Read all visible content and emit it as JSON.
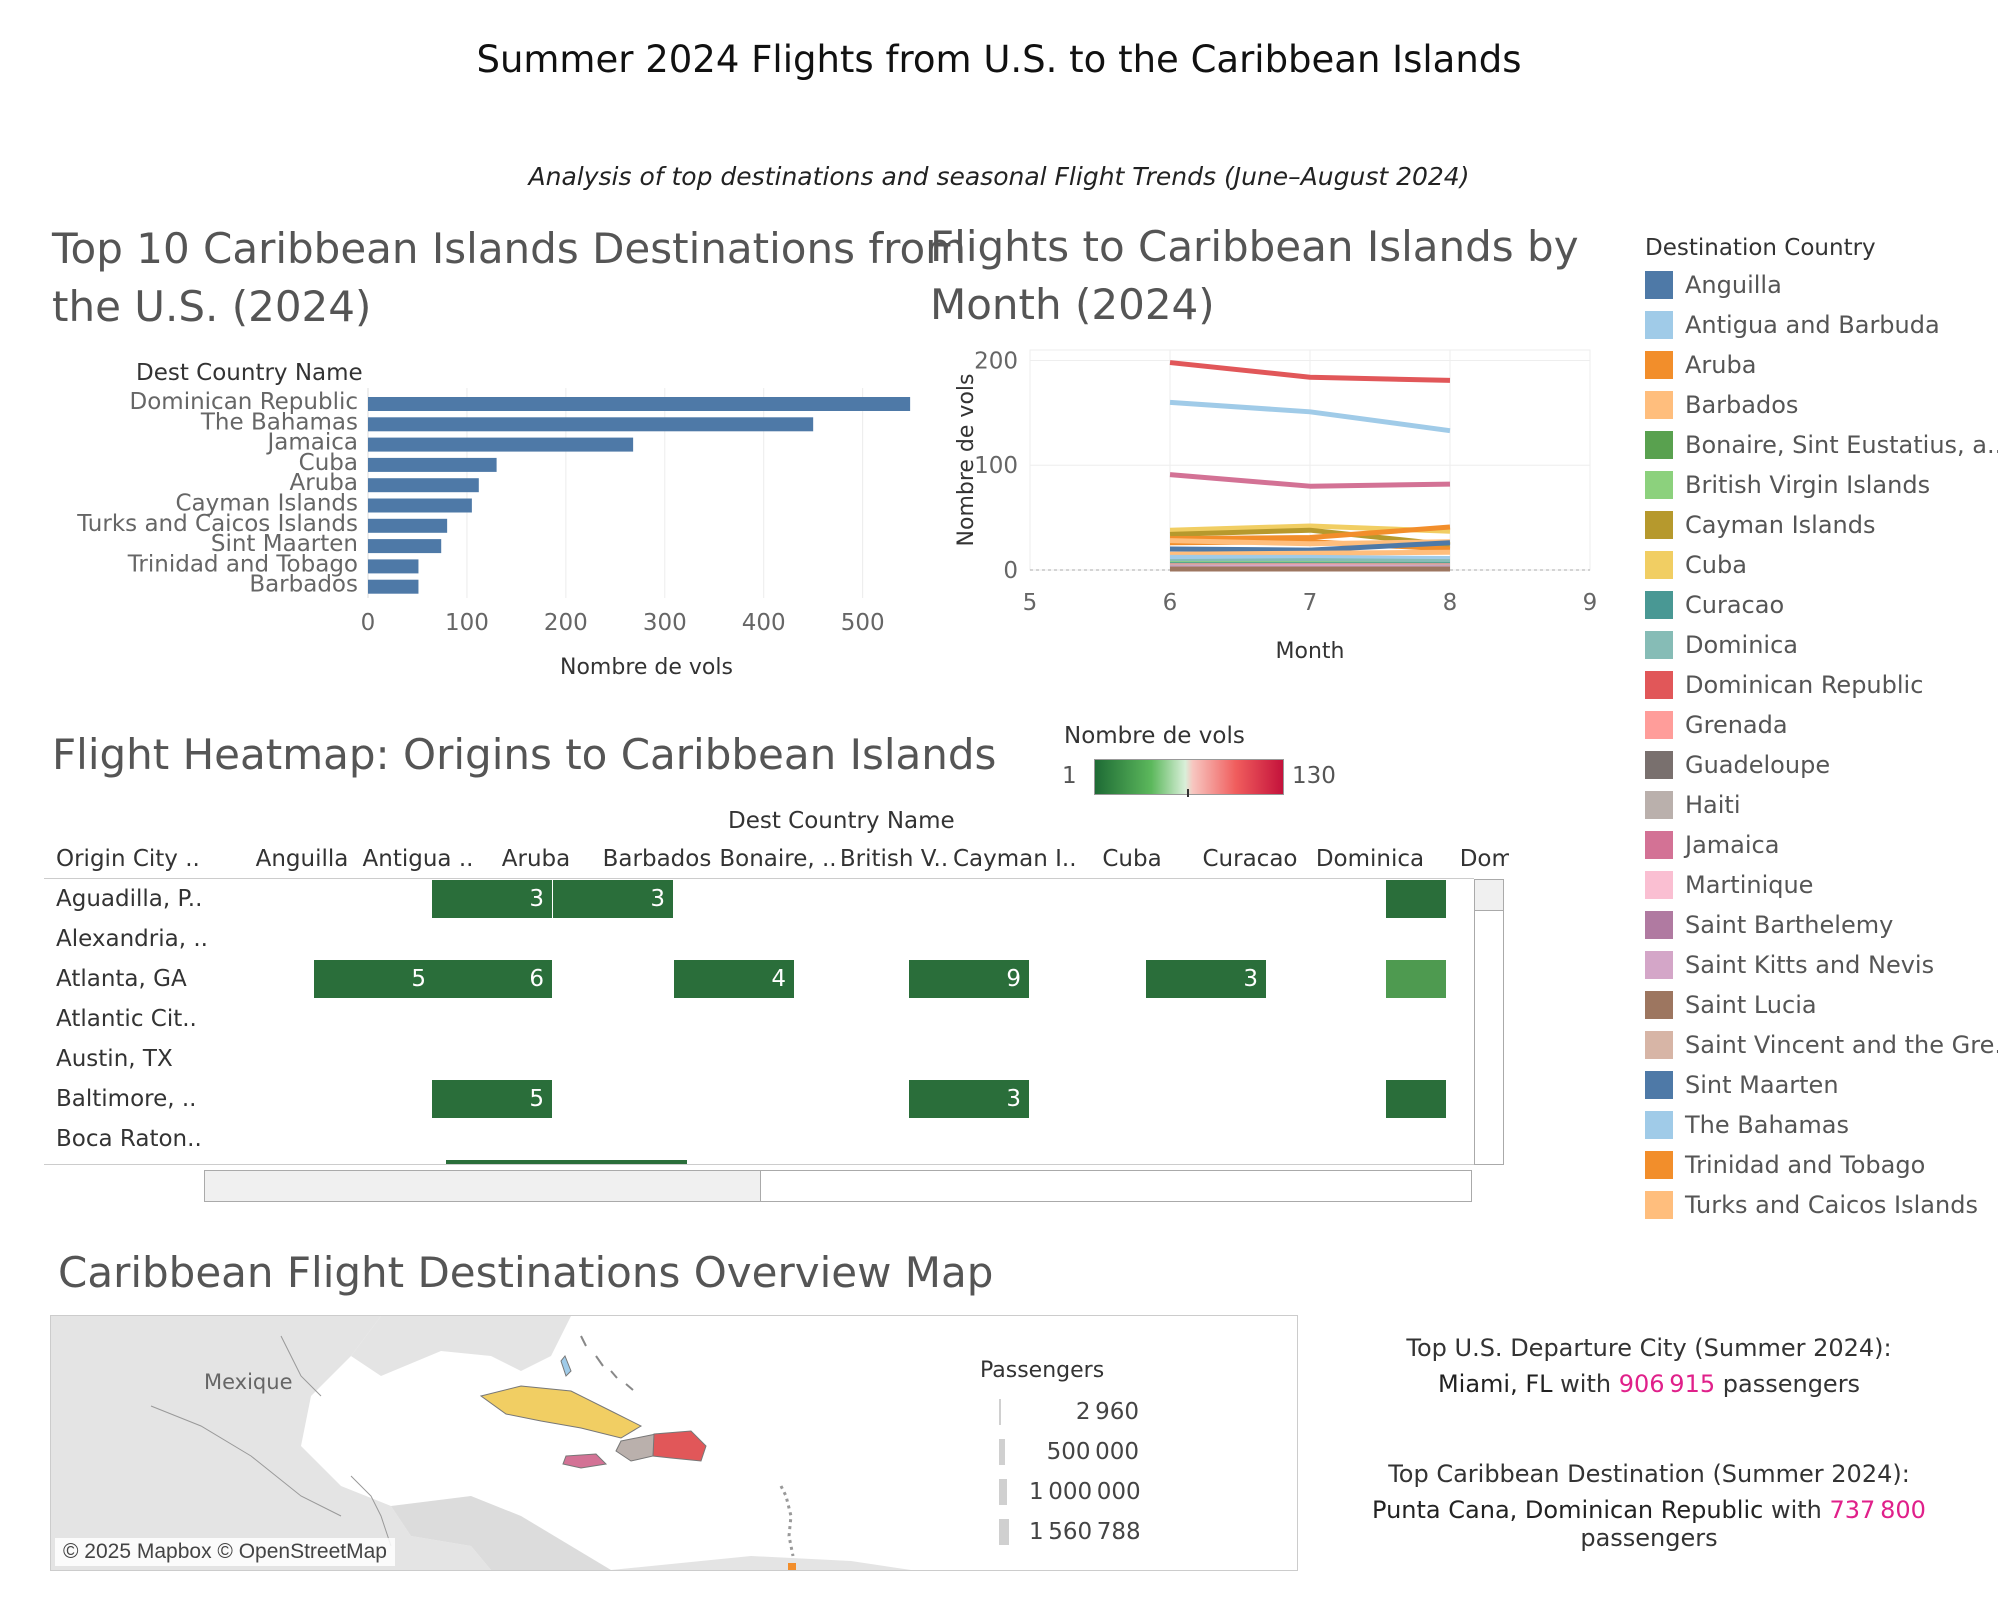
{
  "header": {
    "title": "Summer 2024 Flights from U.S. to the Caribbean Islands",
    "subtitle": "Analysis of top destinations and seasonal Flight Trends (June–August 2024)"
  },
  "bar_chart": {
    "title": "Top 10 Caribbean Islands Destinations from the U.S. (2024)",
    "title_line1": "Top 10 Caribbean Islands Destinations from",
    "title_line2": "the U.S. (2024)",
    "row_header": "Dest Country Name",
    "xlabel": "Nombre de vols",
    "bar_color": "#4e79a7"
  },
  "line_chart": {
    "title": "Flights to Caribbean Islands by Month (2024)",
    "title_line1": "Flights to Caribbean Islands by",
    "title_line2": "Month (2024)",
    "xlabel": "Month",
    "ylabel": "Nombre de vols"
  },
  "legend": {
    "title": "Destination Country",
    "items": [
      {
        "label": "Anguilla",
        "color": "#4e79a7"
      },
      {
        "label": "Antigua and Barbuda",
        "color": "#a0cbe8"
      },
      {
        "label": "Aruba",
        "color": "#f28e2b"
      },
      {
        "label": "Barbados",
        "color": "#ffbe7d"
      },
      {
        "label": "Bonaire, Sint Eustatius, a..",
        "color": "#59a14f"
      },
      {
        "label": "British Virgin Islands",
        "color": "#8cd17d"
      },
      {
        "label": "Cayman Islands",
        "color": "#b6992d"
      },
      {
        "label": "Cuba",
        "color": "#f1ce63"
      },
      {
        "label": "Curacao",
        "color": "#499894"
      },
      {
        "label": "Dominica",
        "color": "#86bcb6"
      },
      {
        "label": "Dominican Republic",
        "color": "#e15759"
      },
      {
        "label": "Grenada",
        "color": "#ff9d9a"
      },
      {
        "label": "Guadeloupe",
        "color": "#79706e"
      },
      {
        "label": "Haiti",
        "color": "#bab0ac"
      },
      {
        "label": "Jamaica",
        "color": "#d37295"
      },
      {
        "label": "Martinique",
        "color": "#fabfd2"
      },
      {
        "label": "Saint Barthelemy",
        "color": "#b07aa1"
      },
      {
        "label": "Saint Kitts and Nevis",
        "color": "#d4a6c8"
      },
      {
        "label": "Saint Lucia",
        "color": "#9d7660"
      },
      {
        "label": "Saint Vincent and the Gre..",
        "color": "#d7b5a6"
      },
      {
        "label": "Sint Maarten",
        "color": "#4e79a7"
      },
      {
        "label": "The Bahamas",
        "color": "#a0cbe8"
      },
      {
        "label": "Trinidad and Tobago",
        "color": "#f28e2b"
      },
      {
        "label": "Turks and Caicos Islands",
        "color": "#ffbe7d"
      }
    ]
  },
  "heatmap": {
    "title": "Flight Heatmap: Origins to Caribbean Islands",
    "column_group": "Dest Country Name",
    "row_header": "Origin City ..",
    "color_legend_title": "Nombre de vols",
    "color_min": "1",
    "color_max": "130",
    "columns": [
      "Anguilla",
      "Antigua ..",
      "Aruba",
      "Barbados",
      "Bonaire, ..",
      "British V..",
      "Cayman I..",
      "Cuba",
      "Curacao",
      "Dominica",
      "Domi"
    ],
    "rows": [
      {
        "label": "Aguadilla, P..",
        "cells": [
          null,
          null,
          "3",
          "3",
          null,
          null,
          null,
          null,
          null,
          null,
          ""
        ]
      },
      {
        "label": "Alexandria, ..",
        "cells": [
          null,
          null,
          null,
          null,
          null,
          null,
          null,
          null,
          null,
          null,
          null
        ]
      },
      {
        "label": "Atlanta, GA",
        "cells": [
          null,
          "5",
          "6",
          null,
          "4",
          null,
          "9",
          null,
          "3",
          null,
          ""
        ]
      },
      {
        "label": "Atlantic Cit..",
        "cells": [
          null,
          null,
          null,
          null,
          null,
          null,
          null,
          null,
          null,
          null,
          null
        ]
      },
      {
        "label": "Austin, TX",
        "cells": [
          null,
          null,
          null,
          null,
          null,
          null,
          null,
          null,
          null,
          null,
          null
        ]
      },
      {
        "label": "Baltimore, ..",
        "cells": [
          null,
          null,
          "5",
          null,
          null,
          null,
          "3",
          null,
          null,
          null,
          ""
        ]
      },
      {
        "label": "Boca Raton..",
        "cells": [
          null,
          null,
          null,
          null,
          null,
          null,
          null,
          null,
          null,
          null,
          null
        ]
      }
    ]
  },
  "map": {
    "title": "Caribbean Flight Destinations Overview Map",
    "country_label": "Mexique",
    "attribution": "© 2025 Mapbox © OpenStreetMap",
    "size_legend_title": "Passengers",
    "size_legend": [
      "2 960",
      "500 000",
      "1 000 000",
      "1 560 788"
    ]
  },
  "kpi": {
    "departure_title": "Top U.S. Departure City (Summer 2024):",
    "departure_city": "Miami, FL",
    "departure_with": "with",
    "departure_value": "906 915",
    "departure_unit": "passengers",
    "destination_title": "Top Caribbean Destination (Summer 2024):",
    "destination_city": "Punta Cana, Dominican Republic",
    "destination_with": "with",
    "destination_value": "737 800",
    "destination_unit": "passengers"
  },
  "chart_data": [
    {
      "type": "bar",
      "orientation": "horizontal",
      "title": "Top 10 Caribbean Islands Destinations from the U.S. (2024)",
      "categories": [
        "Dominican Republic",
        "The Bahamas",
        "Jamaica",
        "Cuba",
        "Aruba",
        "Cayman Islands",
        "Turks and Caicos Islands",
        "Sint Maarten",
        "Trinidad and Tobago",
        "Barbados"
      ],
      "values": [
        548,
        450,
        268,
        130,
        112,
        105,
        80,
        74,
        51,
        51
      ],
      "xlabel": "Nombre de vols",
      "ylabel": "Dest Country Name",
      "xlim": [
        0,
        560
      ],
      "xticks": [
        0,
        100,
        200,
        300,
        400,
        500
      ],
      "grid": true
    },
    {
      "type": "line",
      "title": "Flights to Caribbean Islands by Month (2024)",
      "x": [
        6,
        7,
        8
      ],
      "xlabel": "Month",
      "ylabel": "Nombre de vols",
      "xlim": [
        5,
        9
      ],
      "ylim": [
        0,
        210
      ],
      "xticks": [
        5,
        6,
        7,
        8,
        9
      ],
      "yticks": [
        0,
        100,
        200
      ],
      "legend": "right",
      "series": [
        {
          "name": "Dominican Republic",
          "color": "#e15759",
          "values": [
            198,
            184,
            181
          ]
        },
        {
          "name": "The Bahamas",
          "color": "#a0cbe8",
          "values": [
            160,
            151,
            133
          ]
        },
        {
          "name": "Jamaica",
          "color": "#d37295",
          "values": [
            91,
            80,
            82
          ]
        },
        {
          "name": "Cuba",
          "color": "#f1ce63",
          "values": [
            38,
            42,
            37
          ]
        },
        {
          "name": "Cayman Islands",
          "color": "#b6992d",
          "values": [
            34,
            38,
            24
          ]
        },
        {
          "name": "Aruba",
          "color": "#f28e2b",
          "values": [
            30,
            31,
            41
          ]
        },
        {
          "name": "Trinidad and Tobago",
          "color": "#f28e2b",
          "values": [
            26,
            27,
            20
          ]
        },
        {
          "name": "Turks and Caicos Islands",
          "color": "#ffbe7d",
          "values": [
            28,
            25,
            27
          ]
        },
        {
          "name": "Sint Maarten",
          "color": "#4e79a7",
          "values": [
            20,
            19,
            26
          ]
        },
        {
          "name": "Barbados",
          "color": "#ffbe7d",
          "values": [
            15,
            16,
            17
          ]
        },
        {
          "name": "Antigua and Barbuda",
          "color": "#a0cbe8",
          "values": [
            12,
            12,
            11
          ]
        },
        {
          "name": "Dominica",
          "color": "#86bcb6",
          "values": [
            8,
            9,
            8
          ]
        },
        {
          "name": "British Virgin Islands",
          "color": "#8cd17d",
          "values": [
            6,
            6,
            5
          ]
        },
        {
          "name": "Curacao",
          "color": "#499894",
          "values": [
            5,
            5,
            5
          ]
        },
        {
          "name": "Grenada",
          "color": "#ff9d9a",
          "values": [
            4,
            4,
            4
          ]
        },
        {
          "name": "Haiti",
          "color": "#bab0ac",
          "values": [
            3,
            3,
            3
          ]
        },
        {
          "name": "Anguilla",
          "color": "#4e79a7",
          "values": [
            2,
            2,
            2
          ]
        },
        {
          "name": "Saint Kitts and Nevis",
          "color": "#d4a6c8",
          "values": [
            2,
            3,
            2
          ]
        },
        {
          "name": "Saint Lucia",
          "color": "#9d7660",
          "values": [
            1,
            1,
            1
          ]
        }
      ]
    }
  ]
}
